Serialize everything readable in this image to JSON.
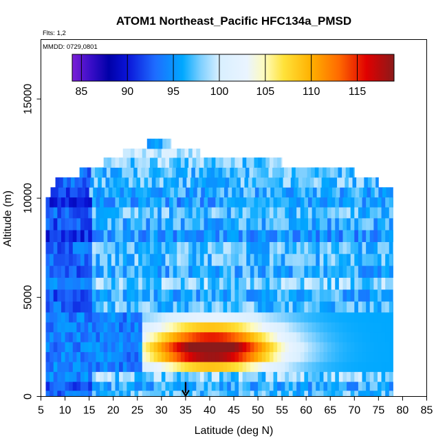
{
  "chart_data": {
    "type": "heatmap",
    "title": "ATOM1 Northeast_Pacific HFC134a_PMSD",
    "subtitle_flights": "Flts: 1,2",
    "subtitle_dates": "MMDD: 0729,0801",
    "xlabel": "Latitude (deg N)",
    "ylabel": "Altitude (m)",
    "xlim": [
      5,
      85
    ],
    "ylim": [
      0,
      18000
    ],
    "x_ticks": [
      "5",
      "10",
      "15",
      "20",
      "25",
      "30",
      "35",
      "40",
      "45",
      "50",
      "55",
      "60",
      "65",
      "70",
      "75",
      "80",
      "85"
    ],
    "y_ticks": [
      "0",
      "5000",
      "10000",
      "15000"
    ],
    "colorbar": {
      "range": [
        84,
        119
      ],
      "ticks": [
        "85",
        "90",
        "95",
        "100",
        "105",
        "110",
        "115"
      ],
      "tick_values": [
        85,
        90,
        95,
        100,
        105,
        110,
        115
      ]
    },
    "marker": {
      "x": 35,
      "y": 0,
      "symbol": "down-arrow"
    },
    "rows": [
      {
        "alt": 12700,
        "lat_range": [
          27,
          32
        ],
        "value": 97
      },
      {
        "alt": 12300,
        "lat_range": [
          22,
          38
        ],
        "value": 100
      },
      {
        "alt": 11800,
        "lat_range": [
          18,
          55
        ],
        "value": 98
      },
      {
        "alt": 11300,
        "lat_range": [
          13,
          70
        ],
        "value": 97
      },
      {
        "alt": 10800,
        "lat_range": [
          8,
          75
        ],
        "value": 97
      },
      {
        "alt": 10300,
        "lat_range": [
          7,
          78
        ],
        "value": 96
      },
      {
        "alt": 9800,
        "lat_range": [
          6,
          78
        ],
        "value": 95
      },
      {
        "alt": 9300,
        "lat_range": [
          6,
          78
        ],
        "value": 97
      },
      {
        "alt": 8700,
        "lat_range": [
          6,
          78
        ],
        "value": 96
      },
      {
        "alt": 8100,
        "lat_range": [
          6,
          78
        ],
        "value": 95
      },
      {
        "alt": 7500,
        "lat_range": [
          6,
          78
        ],
        "value": 97
      },
      {
        "alt": 6900,
        "lat_range": [
          6,
          78
        ],
        "value": 97
      },
      {
        "alt": 6300,
        "lat_range": [
          6,
          78
        ],
        "value": 96
      },
      {
        "alt": 5700,
        "lat_range": [
          6,
          78
        ],
        "value": 98
      },
      {
        "alt": 5100,
        "lat_range": [
          6,
          78
        ],
        "value": 96
      },
      {
        "alt": 4500,
        "lat_range": [
          6,
          78
        ],
        "value": 97
      },
      {
        "alt": 4000,
        "lat_range": [
          6,
          78
        ],
        "value": 100
      },
      {
        "alt": 3500,
        "lat_range": [
          6,
          78
        ],
        "value": 104
      },
      {
        "alt": 3000,
        "lat_range": [
          6,
          78
        ],
        "value": 108
      },
      {
        "alt": 2500,
        "lat_range": [
          6,
          78
        ],
        "value": 112
      },
      {
        "alt": 2000,
        "lat_range": [
          6,
          78
        ],
        "value": 110
      },
      {
        "alt": 1500,
        "lat_range": [
          6,
          78
        ],
        "value": 104
      },
      {
        "alt": 1000,
        "lat_range": [
          6,
          78
        ],
        "value": 98
      },
      {
        "alt": 500,
        "lat_range": [
          6,
          78
        ],
        "value": 96
      },
      {
        "alt": 100,
        "lat_range": [
          6,
          78
        ],
        "value": 97
      }
    ]
  }
}
